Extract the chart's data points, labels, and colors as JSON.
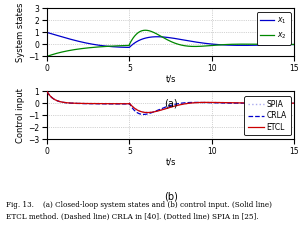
{
  "fig_caption_line1": "Fig. 13.    (a) Closed-loop system states and (b) control input. (Solid line)",
  "fig_caption_line2": "ETCL method. (Dashed line) CRLA in [40]. (Dotted line) SPIA in [25].",
  "subplot_a": {
    "ylabel": "System states",
    "xlabel": "t/s",
    "sublabel": "(a)",
    "ylim": [
      -1,
      3
    ],
    "xlim": [
      0,
      15
    ],
    "yticks": [
      -1,
      0,
      1,
      2,
      3
    ],
    "xticks": [
      0,
      5,
      10,
      15
    ],
    "x1_color": "#0000cc",
    "x2_color": "#008800",
    "legend_x1": "$x_1$",
    "legend_x2": "$x_2$"
  },
  "subplot_b": {
    "ylabel": "Control input",
    "xlabel": "t/s",
    "sublabel": "(b)",
    "ylim": [
      -3,
      1
    ],
    "xlim": [
      0,
      15
    ],
    "yticks": [
      -3,
      -2,
      -1,
      0,
      1
    ],
    "xticks": [
      0,
      5,
      10,
      15
    ],
    "etcl_color": "#cc0000",
    "crla_color": "#0000cc",
    "spia_color": "#aaaaee",
    "legend_etcl": "ETCL",
    "legend_crla": "CRLA",
    "legend_spia": "SPIA"
  }
}
